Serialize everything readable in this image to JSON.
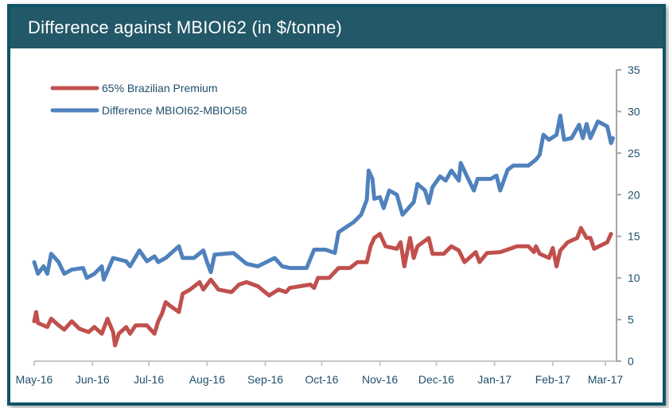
{
  "header": {
    "title": "Difference against MBIOI62 (in $/tonne)"
  },
  "chart_data": {
    "type": "line",
    "title": "Difference against MBIOI62 (in $/tonne)",
    "xlabel": "",
    "ylabel": "",
    "y_axis_position": "right",
    "ylim": [
      0,
      35
    ],
    "yticks": [
      "0",
      "5",
      "10",
      "15",
      "20",
      "25",
      "30",
      "35"
    ],
    "xlim": [
      "2016-05-01",
      "2017-03-06"
    ],
    "xticks": [
      {
        "date": "2016-05-01",
        "label": "May-16"
      },
      {
        "date": "2016-06-01",
        "label": "Jun-16"
      },
      {
        "date": "2016-07-01",
        "label": "Jul-16"
      },
      {
        "date": "2016-08-01",
        "label": "Aug-16"
      },
      {
        "date": "2016-09-01",
        "label": "Sep-16"
      },
      {
        "date": "2016-10-01",
        "label": "Oct-16"
      },
      {
        "date": "2016-11-01",
        "label": "Nov-16"
      },
      {
        "date": "2016-12-01",
        "label": "Dec-16"
      },
      {
        "date": "2017-01-01",
        "label": "Jan-17"
      },
      {
        "date": "2017-02-01",
        "label": "Feb-17"
      },
      {
        "date": "2017-03-01",
        "label": "Mar-17"
      }
    ],
    "grid": false,
    "legend_position": "top-left",
    "series": [
      {
        "name": "65% Brazilian Premium",
        "color": "#c0504d",
        "points": [
          [
            "2016-05-01",
            4.8
          ],
          [
            "2016-05-02",
            5.9
          ],
          [
            "2016-05-03",
            4.6
          ],
          [
            "2016-05-08",
            4.1
          ],
          [
            "2016-05-10",
            5.1
          ],
          [
            "2016-05-14",
            4.3
          ],
          [
            "2016-05-17",
            3.8
          ],
          [
            "2016-05-21",
            4.8
          ],
          [
            "2016-05-25",
            3.9
          ],
          [
            "2016-05-30",
            3.5
          ],
          [
            "2016-06-02",
            4.1
          ],
          [
            "2016-06-06",
            3.3
          ],
          [
            "2016-06-09",
            5.1
          ],
          [
            "2016-06-12",
            3.5
          ],
          [
            "2016-06-13",
            1.9
          ],
          [
            "2016-06-15",
            3.3
          ],
          [
            "2016-06-19",
            4.1
          ],
          [
            "2016-06-21",
            3.3
          ],
          [
            "2016-06-24",
            4.3
          ],
          [
            "2016-06-30",
            4.3
          ],
          [
            "2016-07-04",
            3.3
          ],
          [
            "2016-07-06",
            4.8
          ],
          [
            "2016-07-08",
            5.7
          ],
          [
            "2016-07-10",
            7.1
          ],
          [
            "2016-07-12",
            6.7
          ],
          [
            "2016-07-17",
            5.9
          ],
          [
            "2016-07-19",
            8.1
          ],
          [
            "2016-07-23",
            8.6
          ],
          [
            "2016-07-28",
            9.5
          ],
          [
            "2016-07-30",
            8.6
          ],
          [
            "2016-08-03",
            9.8
          ],
          [
            "2016-08-07",
            8.6
          ],
          [
            "2016-08-14",
            8.3
          ],
          [
            "2016-08-18",
            9.2
          ],
          [
            "2016-08-22",
            9.5
          ],
          [
            "2016-08-28",
            9.0
          ],
          [
            "2016-09-03",
            7.9
          ],
          [
            "2016-09-08",
            8.6
          ],
          [
            "2016-09-12",
            8.3
          ],
          [
            "2016-09-14",
            8.8
          ],
          [
            "2016-09-25",
            9.2
          ],
          [
            "2016-09-27",
            8.8
          ],
          [
            "2016-09-29",
            10.0
          ],
          [
            "2016-10-05",
            10.0
          ],
          [
            "2016-10-10",
            11.2
          ],
          [
            "2016-10-16",
            11.2
          ],
          [
            "2016-10-20",
            11.9
          ],
          [
            "2016-10-25",
            11.9
          ],
          [
            "2016-10-27",
            13.8
          ],
          [
            "2016-10-29",
            14.8
          ],
          [
            "2016-11-01",
            15.3
          ],
          [
            "2016-11-04",
            13.8
          ],
          [
            "2016-11-10",
            13.5
          ],
          [
            "2016-11-12",
            14.3
          ],
          [
            "2016-11-14",
            11.4
          ],
          [
            "2016-11-17",
            14.8
          ],
          [
            "2016-11-19",
            12.4
          ],
          [
            "2016-11-21",
            13.8
          ],
          [
            "2016-11-27",
            14.8
          ],
          [
            "2016-11-29",
            12.9
          ],
          [
            "2016-12-05",
            12.9
          ],
          [
            "2016-12-09",
            13.8
          ],
          [
            "2016-12-13",
            13.3
          ],
          [
            "2016-12-16",
            11.9
          ],
          [
            "2016-12-22",
            13.1
          ],
          [
            "2016-12-24",
            11.9
          ],
          [
            "2016-12-28",
            13.0
          ],
          [
            "2017-01-04",
            13.1
          ],
          [
            "2017-01-13",
            13.8
          ],
          [
            "2017-01-19",
            13.8
          ],
          [
            "2017-01-22",
            13.1
          ],
          [
            "2017-01-23",
            13.8
          ],
          [
            "2017-01-25",
            12.9
          ],
          [
            "2017-01-30",
            12.4
          ],
          [
            "2017-02-01",
            13.6
          ],
          [
            "2017-02-03",
            11.4
          ],
          [
            "2017-02-05",
            13.3
          ],
          [
            "2017-02-09",
            14.3
          ],
          [
            "2017-02-14",
            14.8
          ],
          [
            "2017-02-16",
            16.0
          ],
          [
            "2017-02-19",
            14.8
          ],
          [
            "2017-02-21",
            14.8
          ],
          [
            "2017-02-23",
            13.5
          ],
          [
            "2017-03-02",
            14.3
          ],
          [
            "2017-03-04",
            15.3
          ]
        ]
      },
      {
        "name": "Difference MBIOI62-MBIOI58",
        "color": "#4f81bd",
        "points": [
          [
            "2016-05-01",
            11.9
          ],
          [
            "2016-05-03",
            10.5
          ],
          [
            "2016-05-06",
            11.4
          ],
          [
            "2016-05-08",
            10.5
          ],
          [
            "2016-05-10",
            12.9
          ],
          [
            "2016-05-14",
            11.9
          ],
          [
            "2016-05-17",
            10.5
          ],
          [
            "2016-05-21",
            11.0
          ],
          [
            "2016-05-27",
            11.2
          ],
          [
            "2016-05-29",
            10.0
          ],
          [
            "2016-06-02",
            10.5
          ],
          [
            "2016-06-06",
            11.4
          ],
          [
            "2016-06-07",
            9.8
          ],
          [
            "2016-06-12",
            12.4
          ],
          [
            "2016-06-19",
            12.0
          ],
          [
            "2016-06-21",
            11.4
          ],
          [
            "2016-06-26",
            13.3
          ],
          [
            "2016-06-30",
            12.0
          ],
          [
            "2016-07-04",
            12.6
          ],
          [
            "2016-07-06",
            11.9
          ],
          [
            "2016-07-10",
            12.4
          ],
          [
            "2016-07-17",
            13.8
          ],
          [
            "2016-07-19",
            12.4
          ],
          [
            "2016-07-25",
            12.4
          ],
          [
            "2016-07-30",
            13.3
          ],
          [
            "2016-08-01",
            11.9
          ],
          [
            "2016-08-03",
            10.7
          ],
          [
            "2016-08-05",
            12.8
          ],
          [
            "2016-08-15",
            13.0
          ],
          [
            "2016-08-22",
            11.7
          ],
          [
            "2016-08-28",
            11.4
          ],
          [
            "2016-09-06",
            12.4
          ],
          [
            "2016-09-10",
            11.4
          ],
          [
            "2016-09-14",
            11.2
          ],
          [
            "2016-09-23",
            11.2
          ],
          [
            "2016-09-27",
            13.4
          ],
          [
            "2016-10-03",
            13.4
          ],
          [
            "2016-10-08",
            13.0
          ],
          [
            "2016-10-10",
            15.5
          ],
          [
            "2016-10-18",
            16.7
          ],
          [
            "2016-10-22",
            17.6
          ],
          [
            "2016-10-25",
            19.4
          ],
          [
            "2016-10-26",
            22.9
          ],
          [
            "2016-10-28",
            21.9
          ],
          [
            "2016-10-29",
            19.5
          ],
          [
            "2016-11-01",
            19.7
          ],
          [
            "2016-11-03",
            18.4
          ],
          [
            "2016-11-06",
            20.5
          ],
          [
            "2016-11-10",
            20.0
          ],
          [
            "2016-11-13",
            17.6
          ],
          [
            "2016-11-19",
            19.1
          ],
          [
            "2016-11-21",
            21.3
          ],
          [
            "2016-11-25",
            20.5
          ],
          [
            "2016-11-27",
            19.0
          ],
          [
            "2016-11-29",
            20.9
          ],
          [
            "2016-12-03",
            22.2
          ],
          [
            "2016-12-06",
            21.7
          ],
          [
            "2016-12-09",
            22.9
          ],
          [
            "2016-12-13",
            21.7
          ],
          [
            "2016-12-14",
            23.8
          ],
          [
            "2016-12-18",
            21.9
          ],
          [
            "2016-12-21",
            20.5
          ],
          [
            "2016-12-23",
            21.9
          ],
          [
            "2016-12-30",
            21.9
          ],
          [
            "2017-01-02",
            22.3
          ],
          [
            "2017-01-04",
            20.5
          ],
          [
            "2017-01-08",
            23.0
          ],
          [
            "2017-01-11",
            23.5
          ],
          [
            "2017-01-19",
            23.5
          ],
          [
            "2017-01-23",
            24.2
          ],
          [
            "2017-01-25",
            24.8
          ],
          [
            "2017-01-27",
            27.2
          ],
          [
            "2017-01-30",
            26.6
          ],
          [
            "2017-02-03",
            27.2
          ],
          [
            "2017-02-05",
            29.5
          ],
          [
            "2017-02-07",
            26.6
          ],
          [
            "2017-02-11",
            26.8
          ],
          [
            "2017-02-15",
            28.4
          ],
          [
            "2017-02-17",
            26.8
          ],
          [
            "2017-02-19",
            28.5
          ],
          [
            "2017-02-21",
            26.8
          ],
          [
            "2017-02-25",
            28.8
          ],
          [
            "2017-03-02",
            28.2
          ],
          [
            "2017-03-04",
            26.2
          ],
          [
            "2017-03-05",
            26.8
          ]
        ]
      }
    ]
  }
}
